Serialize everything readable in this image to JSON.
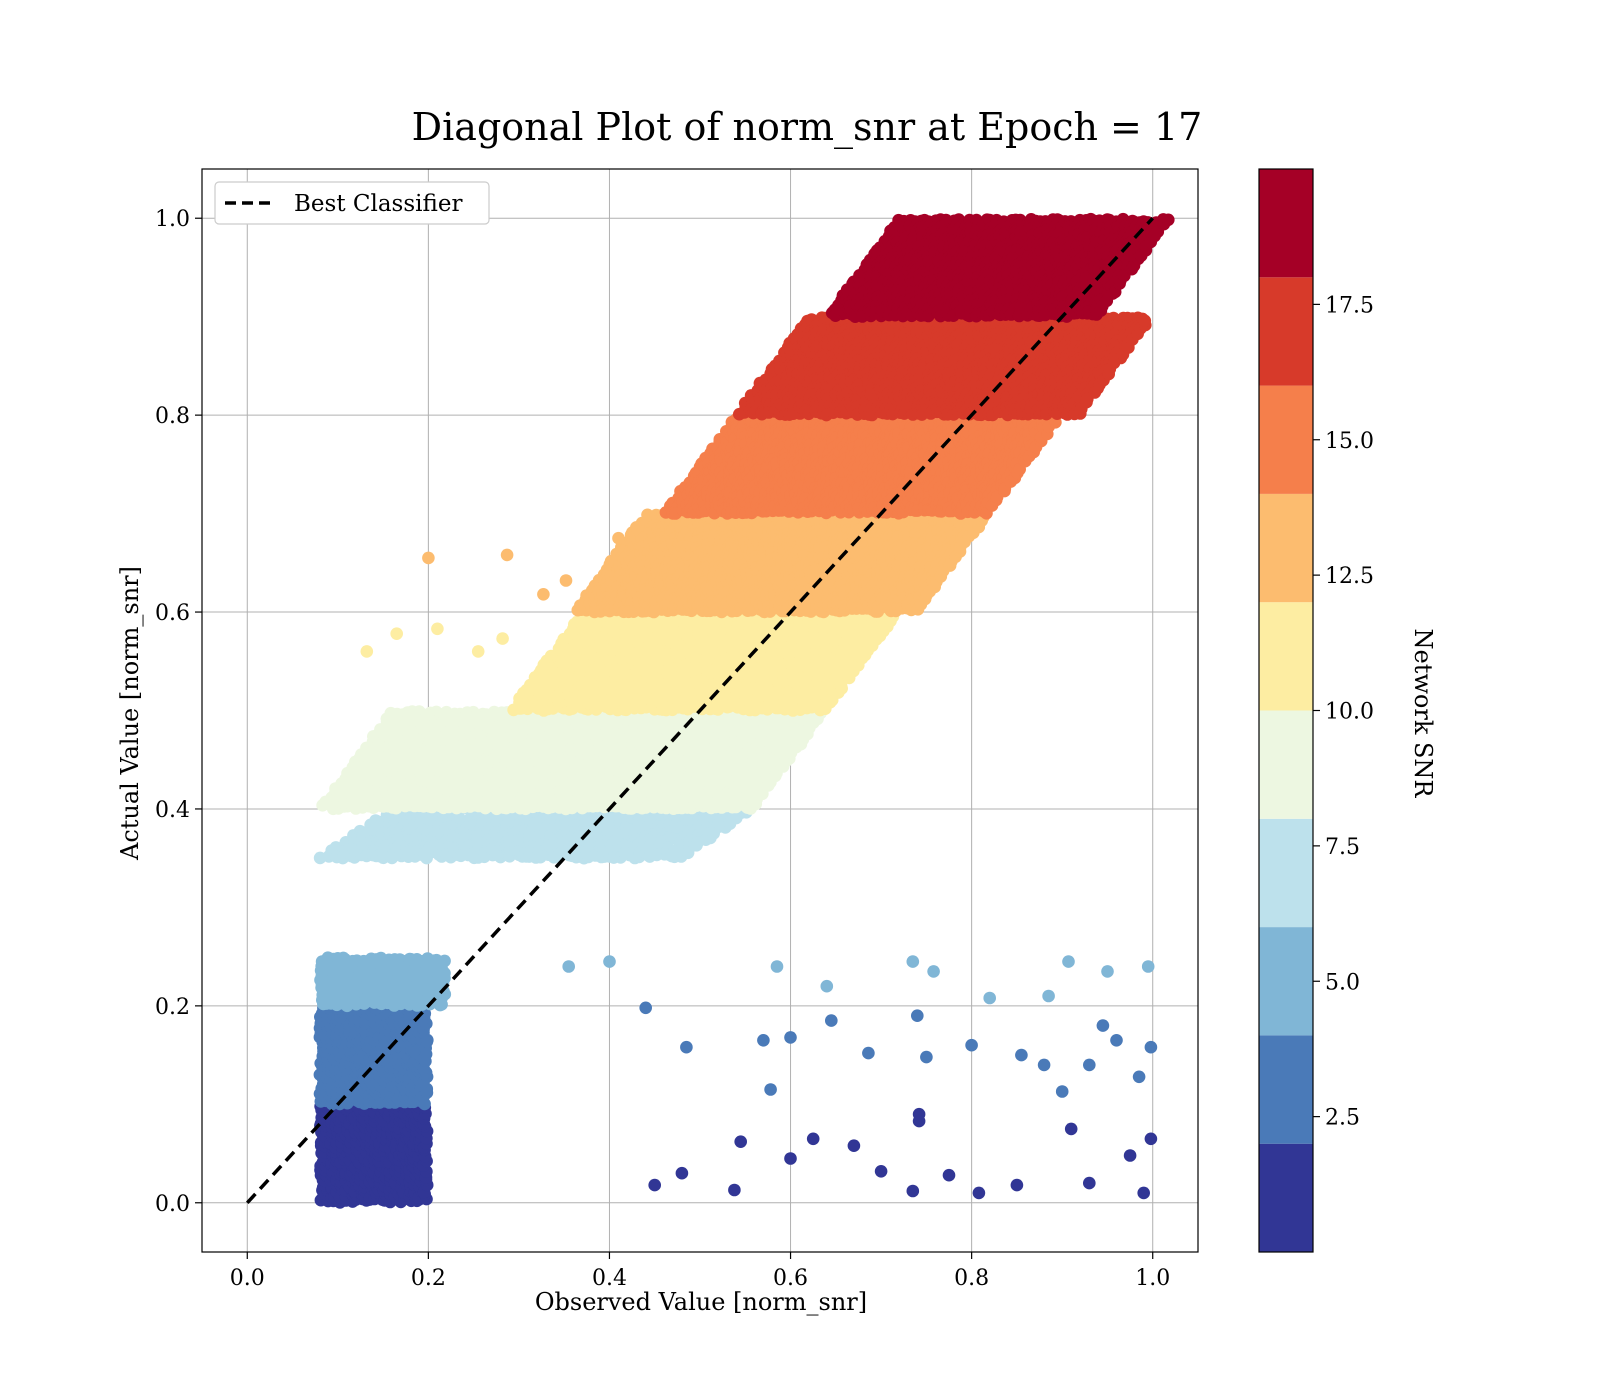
{
  "chart_data": {
    "type": "scatter",
    "title": "Diagonal Plot of norm_snr at Epoch = 17",
    "xlabel": "Observed Value [norm_snr]",
    "ylabel": "Actual Value [norm_snr]",
    "xlim": [
      -0.05,
      1.05
    ],
    "ylim": [
      -0.05,
      1.05
    ],
    "xticks": [
      "0.0",
      "0.2",
      "0.4",
      "0.6",
      "0.8",
      "1.0"
    ],
    "yticks": [
      "0.0",
      "0.2",
      "0.4",
      "0.6",
      "0.8",
      "1.0"
    ],
    "grid": true,
    "legend": {
      "position": "top-left",
      "entries": [
        "Best Classifier"
      ]
    },
    "reference_line": {
      "name": "Best Classifier",
      "style": "dashed",
      "color": "#000000",
      "x": [
        0,
        1
      ],
      "y": [
        0,
        1
      ]
    },
    "colorbar": {
      "label": "Network SNR",
      "range": [
        0,
        20
      ],
      "ticks": [
        "2.5",
        "5.0",
        "7.5",
        "10.0",
        "12.5",
        "15.0",
        "17.5"
      ],
      "colors": [
        "#313695",
        "#4a7ab8",
        "#80b6d6",
        "#bde1ec",
        "#edf7e1",
        "#fdeda2",
        "#fcbc6f",
        "#f57f4b",
        "#d73a2a",
        "#a50026"
      ]
    },
    "bands": [
      {
        "snr_bin": 1,
        "color": "#313695",
        "y_range": [
          0.0,
          0.1
        ],
        "x_range": [
          0.08,
          0.2
        ],
        "density": "high"
      },
      {
        "snr_bin": 2,
        "color": "#4a7ab8",
        "y_range": [
          0.1,
          0.2
        ],
        "x_range": [
          0.08,
          0.2
        ],
        "density": "high"
      },
      {
        "snr_bin": 3,
        "color": "#80b6d6",
        "y_range": [
          0.2,
          0.25
        ],
        "x_range": [
          0.08,
          0.22
        ],
        "density": "high"
      },
      {
        "snr_bin": 4,
        "color": "#bde1ec",
        "y_range": [
          0.35,
          0.4
        ],
        "x_range": [
          0.12,
          0.52
        ],
        "density": "high"
      },
      {
        "snr_bin": 5,
        "color": "#edf7e1",
        "y_range": [
          0.4,
          0.5
        ],
        "x_range": [
          0.12,
          0.6
        ],
        "density": "high"
      },
      {
        "snr_bin": 6,
        "color": "#fdeda2",
        "y_range": [
          0.5,
          0.6
        ],
        "x_range": [
          0.33,
          0.68
        ],
        "density": "high"
      },
      {
        "snr_bin": 7,
        "color": "#fcbc6f",
        "y_range": [
          0.6,
          0.7
        ],
        "x_range": [
          0.4,
          0.78
        ],
        "density": "high"
      },
      {
        "snr_bin": 8,
        "color": "#f57f4b",
        "y_range": [
          0.7,
          0.8
        ],
        "x_range": [
          0.5,
          0.86
        ],
        "density": "high"
      },
      {
        "snr_bin": 9,
        "color": "#d73a2a",
        "y_range": [
          0.8,
          0.9
        ],
        "x_range": [
          0.58,
          0.96
        ],
        "density": "high"
      },
      {
        "snr_bin": 10,
        "color": "#a50026",
        "y_range": [
          0.9,
          1.0
        ],
        "x_range": [
          0.68,
          0.98
        ],
        "density": "high"
      }
    ],
    "scattered_points": [
      {
        "x": 0.2,
        "y": 0.655,
        "color": "#fcbc6f"
      },
      {
        "x": 0.287,
        "y": 0.658,
        "color": "#fcbc6f"
      },
      {
        "x": 0.327,
        "y": 0.618,
        "color": "#fcbc6f"
      },
      {
        "x": 0.352,
        "y": 0.632,
        "color": "#fcbc6f"
      },
      {
        "x": 0.41,
        "y": 0.675,
        "color": "#fcbc6f"
      },
      {
        "x": 0.132,
        "y": 0.56,
        "color": "#fdeda2"
      },
      {
        "x": 0.165,
        "y": 0.578,
        "color": "#fdeda2"
      },
      {
        "x": 0.21,
        "y": 0.583,
        "color": "#fdeda2"
      },
      {
        "x": 0.282,
        "y": 0.573,
        "color": "#fdeda2"
      },
      {
        "x": 0.255,
        "y": 0.56,
        "color": "#fdeda2"
      },
      {
        "x": 0.585,
        "y": 0.24,
        "color": "#80b6d6"
      },
      {
        "x": 0.64,
        "y": 0.22,
        "color": "#80b6d6"
      },
      {
        "x": 0.735,
        "y": 0.245,
        "color": "#80b6d6"
      },
      {
        "x": 0.758,
        "y": 0.235,
        "color": "#80b6d6"
      },
      {
        "x": 0.907,
        "y": 0.245,
        "color": "#80b6d6"
      },
      {
        "x": 0.95,
        "y": 0.235,
        "color": "#80b6d6"
      },
      {
        "x": 0.995,
        "y": 0.24,
        "color": "#80b6d6"
      },
      {
        "x": 0.4,
        "y": 0.245,
        "color": "#80b6d6"
      },
      {
        "x": 0.355,
        "y": 0.24,
        "color": "#80b6d6"
      },
      {
        "x": 0.82,
        "y": 0.208,
        "color": "#80b6d6"
      },
      {
        "x": 0.885,
        "y": 0.21,
        "color": "#80b6d6"
      },
      {
        "x": 0.57,
        "y": 0.165,
        "color": "#4a7ab8"
      },
      {
        "x": 0.6,
        "y": 0.168,
        "color": "#4a7ab8"
      },
      {
        "x": 0.645,
        "y": 0.185,
        "color": "#4a7ab8"
      },
      {
        "x": 0.686,
        "y": 0.152,
        "color": "#4a7ab8"
      },
      {
        "x": 0.74,
        "y": 0.19,
        "color": "#4a7ab8"
      },
      {
        "x": 0.75,
        "y": 0.148,
        "color": "#4a7ab8"
      },
      {
        "x": 0.8,
        "y": 0.16,
        "color": "#4a7ab8"
      },
      {
        "x": 0.855,
        "y": 0.15,
        "color": "#4a7ab8"
      },
      {
        "x": 0.88,
        "y": 0.14,
        "color": "#4a7ab8"
      },
      {
        "x": 0.9,
        "y": 0.113,
        "color": "#4a7ab8"
      },
      {
        "x": 0.93,
        "y": 0.14,
        "color": "#4a7ab8"
      },
      {
        "x": 0.945,
        "y": 0.18,
        "color": "#4a7ab8"
      },
      {
        "x": 0.96,
        "y": 0.165,
        "color": "#4a7ab8"
      },
      {
        "x": 0.985,
        "y": 0.128,
        "color": "#4a7ab8"
      },
      {
        "x": 0.998,
        "y": 0.158,
        "color": "#4a7ab8"
      },
      {
        "x": 0.578,
        "y": 0.115,
        "color": "#4a7ab8"
      },
      {
        "x": 0.485,
        "y": 0.158,
        "color": "#4a7ab8"
      },
      {
        "x": 0.44,
        "y": 0.198,
        "color": "#4a7ab8"
      },
      {
        "x": 0.545,
        "y": 0.062,
        "color": "#313695"
      },
      {
        "x": 0.6,
        "y": 0.045,
        "color": "#313695"
      },
      {
        "x": 0.625,
        "y": 0.065,
        "color": "#313695"
      },
      {
        "x": 0.67,
        "y": 0.058,
        "color": "#313695"
      },
      {
        "x": 0.7,
        "y": 0.032,
        "color": "#313695"
      },
      {
        "x": 0.742,
        "y": 0.09,
        "color": "#313695"
      },
      {
        "x": 0.742,
        "y": 0.083,
        "color": "#313695"
      },
      {
        "x": 0.735,
        "y": 0.012,
        "color": "#313695"
      },
      {
        "x": 0.775,
        "y": 0.028,
        "color": "#313695"
      },
      {
        "x": 0.808,
        "y": 0.01,
        "color": "#313695"
      },
      {
        "x": 0.85,
        "y": 0.018,
        "color": "#313695"
      },
      {
        "x": 0.91,
        "y": 0.075,
        "color": "#313695"
      },
      {
        "x": 0.93,
        "y": 0.02,
        "color": "#313695"
      },
      {
        "x": 0.975,
        "y": 0.048,
        "color": "#313695"
      },
      {
        "x": 0.99,
        "y": 0.01,
        "color": "#313695"
      },
      {
        "x": 0.998,
        "y": 0.065,
        "color": "#313695"
      },
      {
        "x": 0.538,
        "y": 0.013,
        "color": "#313695"
      },
      {
        "x": 0.45,
        "y": 0.018,
        "color": "#313695"
      },
      {
        "x": 0.48,
        "y": 0.03,
        "color": "#313695"
      }
    ]
  }
}
